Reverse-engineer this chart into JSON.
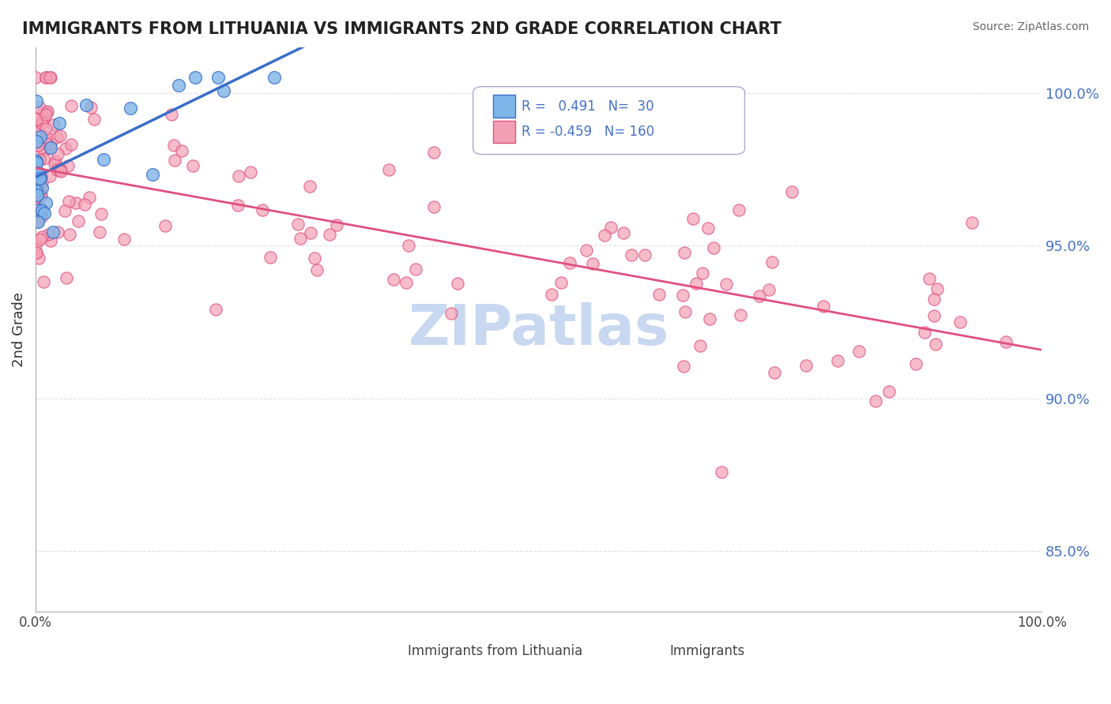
{
  "title": "IMMIGRANTS FROM LITHUANIA VS IMMIGRANTS 2ND GRADE CORRELATION CHART",
  "source": "Source: ZipAtlas.com",
  "ylabel": "2nd Grade",
  "y_tick_values": [
    0.85,
    0.9,
    0.95,
    1.0
  ],
  "legend_blue_label": "Immigrants from Lithuania",
  "legend_pink_label": "Immigrants",
  "R_blue": 0.491,
  "N_blue": 30,
  "R_pink": -0.459,
  "N_pink": 160,
  "blue_color": "#7EB6E8",
  "blue_line_color": "#3A6EC8",
  "pink_color": "#F4A0B4",
  "pink_line_color": "#E05080",
  "watermark_color": "#C8D8F0",
  "background_color": "#FFFFFF",
  "title_color": "#222222",
  "right_label_color": "#4472C4",
  "grid_color": "#E0E0E8"
}
